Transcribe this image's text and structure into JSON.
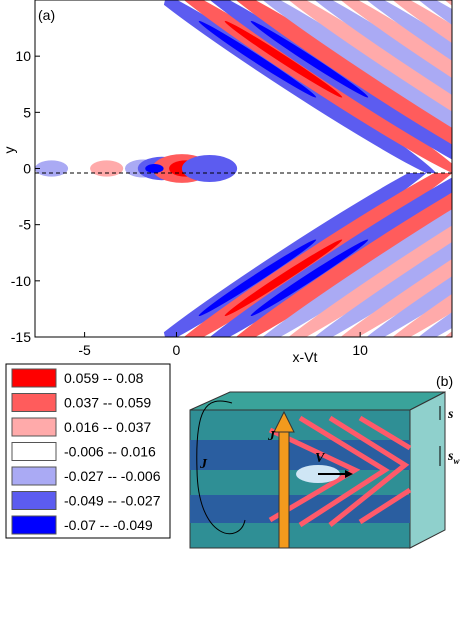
{
  "chart_data": [
    {
      "type": "contour",
      "panel_label": "(a)",
      "x_label": "x-Vt",
      "y_label": "y",
      "xlim": [
        -7.7,
        15
      ],
      "ylim": [
        -15,
        15
      ],
      "xticks": [
        -5,
        0,
        10
      ],
      "yticks": [
        -15,
        -10,
        -5,
        0,
        5,
        10
      ],
      "legend": [
        {
          "label": "0.059 -- 0.08",
          "color": "#ff0000"
        },
        {
          "label": "0.037 -- 0.059",
          "color": "#ff5c5c"
        },
        {
          "label": "0.016 -- 0.037",
          "color": "#ffaaaa"
        },
        {
          "label": "-0.006 -- 0.016",
          "color": "#ffffff"
        },
        {
          "label": "-0.027 -- -0.006",
          "color": "#aaaaf4"
        },
        {
          "label": "-0.049 -- -0.027",
          "color": "#5c5cf0"
        },
        {
          "label": "-0.07 -- -0.049",
          "color": "#0000ff"
        }
      ]
    }
  ],
  "diagram": {
    "panel_label": "(b)",
    "current_side": "J",
    "current_center": "J",
    "velocity": "V",
    "spacing": "s",
    "width_main": "s",
    "width_sub": "w"
  }
}
